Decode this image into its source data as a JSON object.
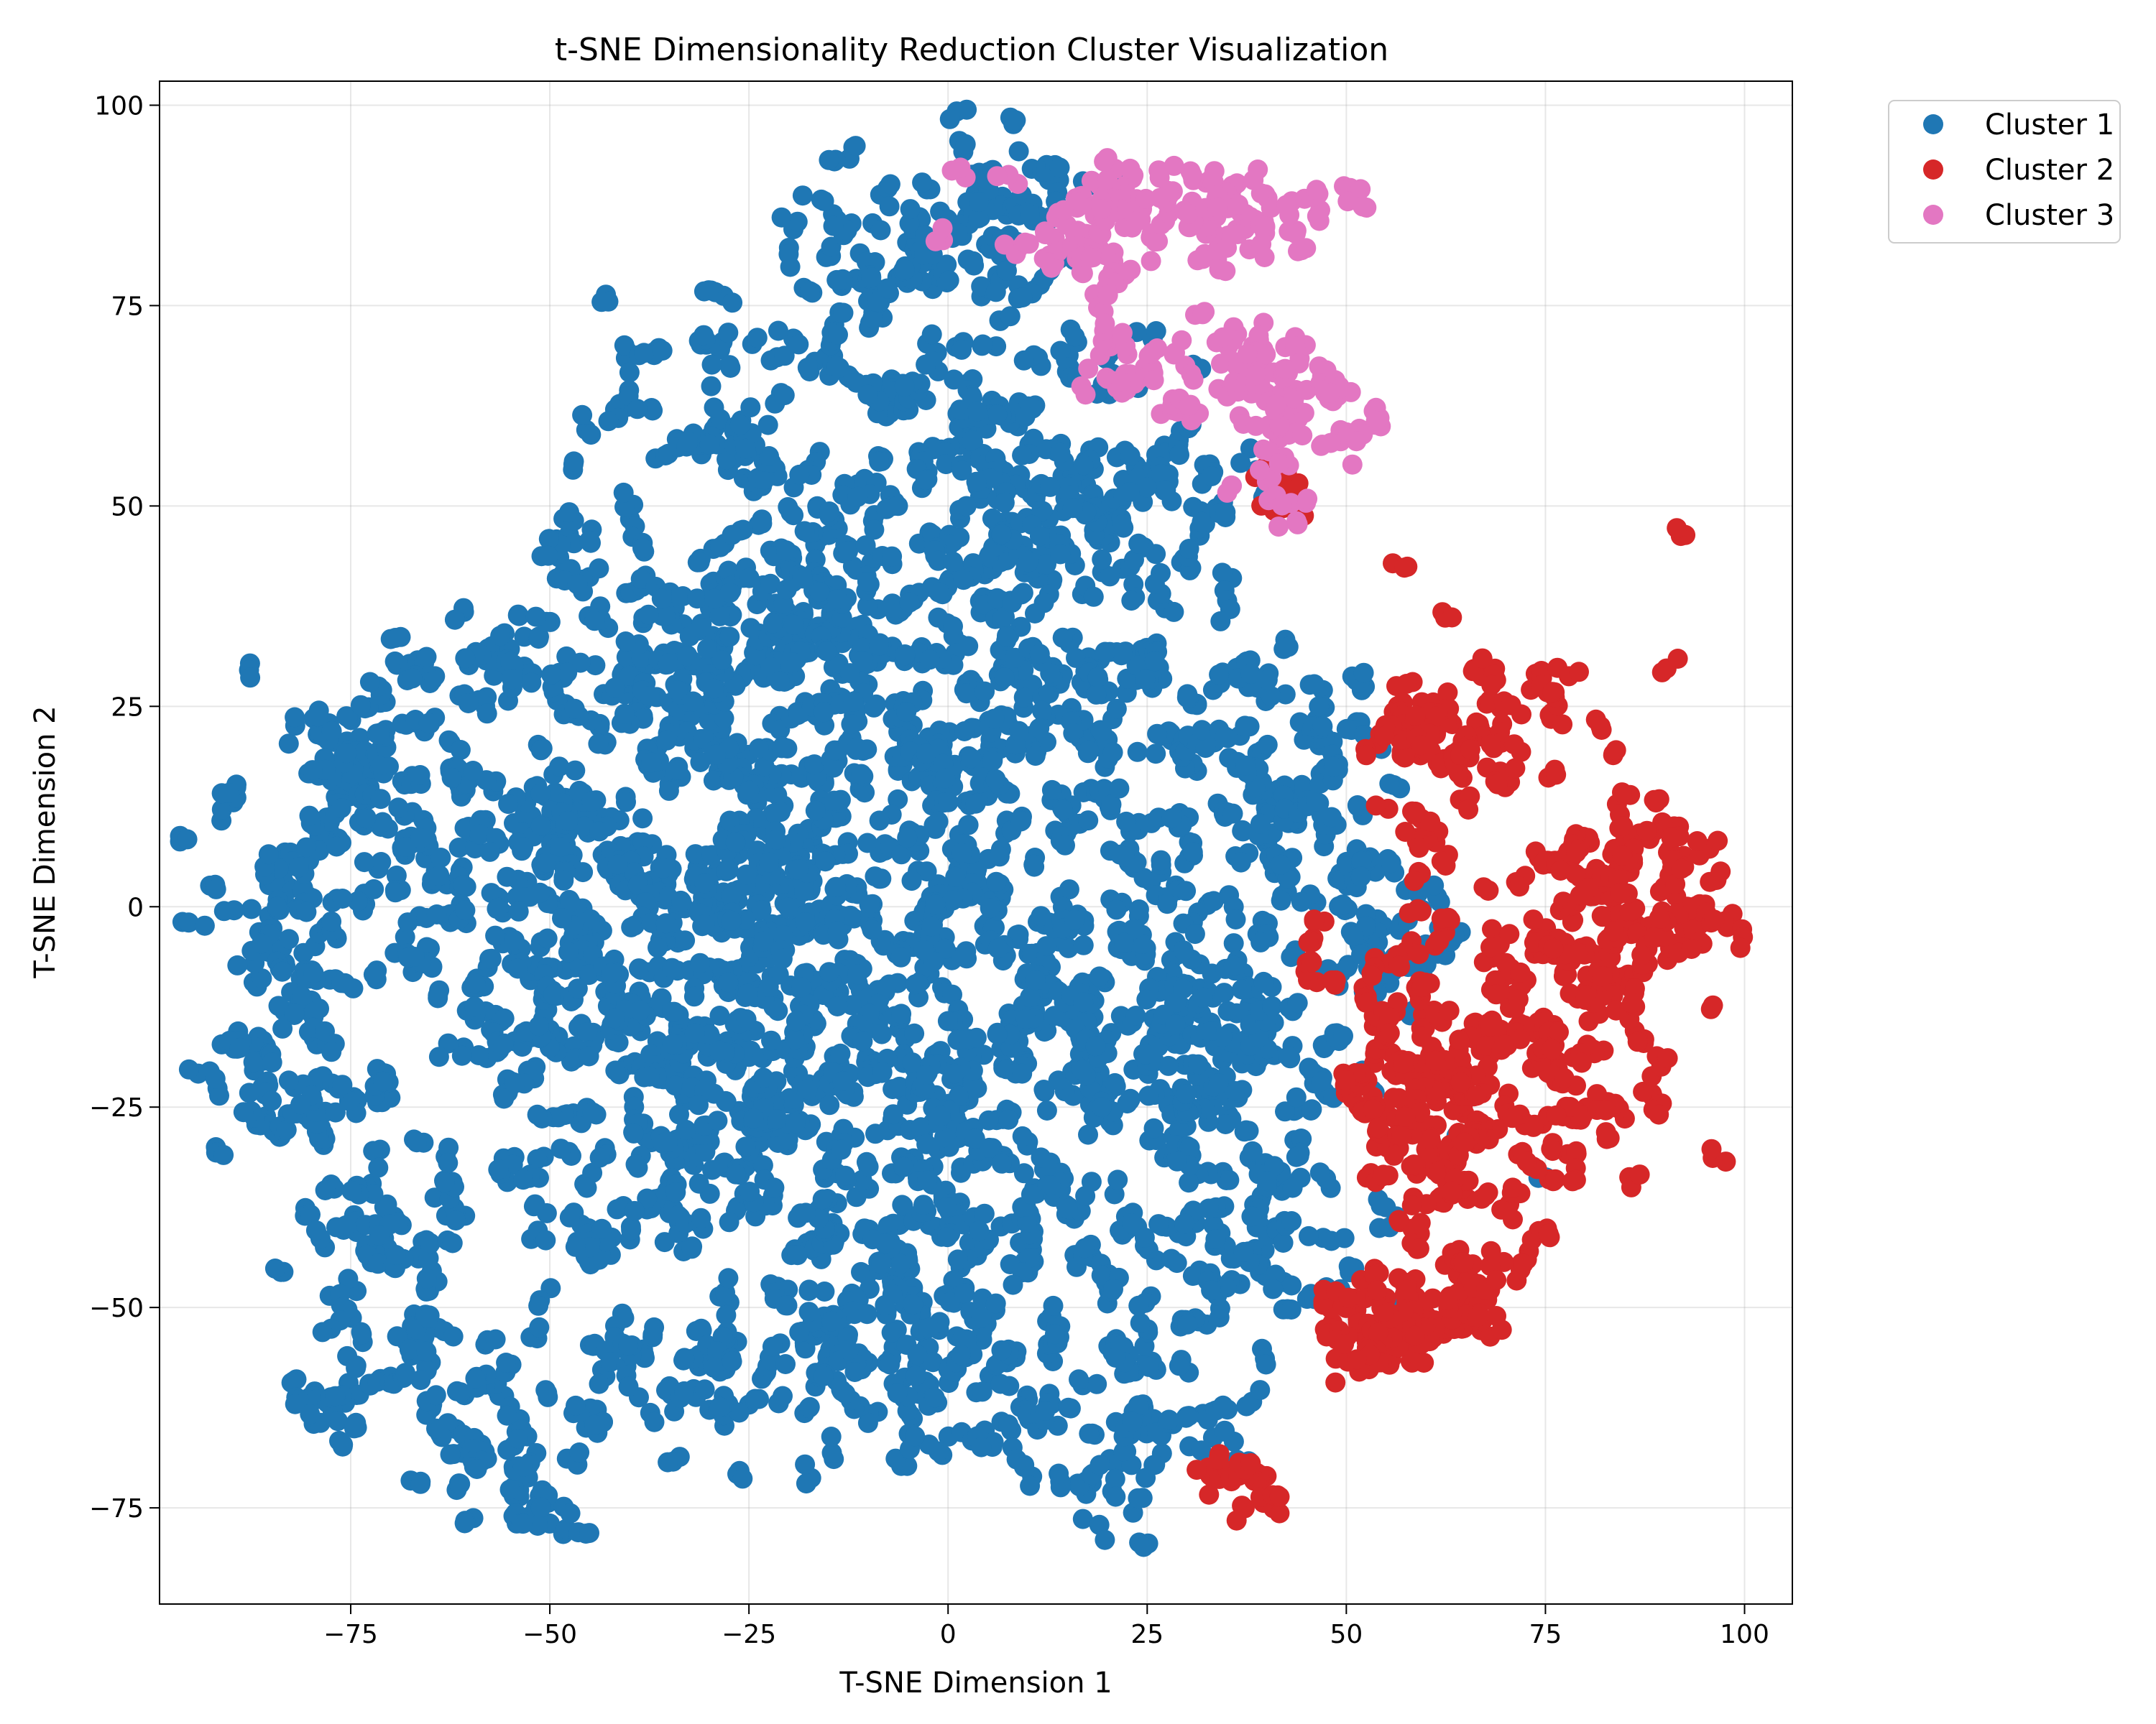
{
  "chart_data": {
    "type": "scatter",
    "title": "t-SNE Dimensionality Reduction Cluster Visualization",
    "xlabel": "T-SNE Dimension 1",
    "ylabel": "T-SNE Dimension 2",
    "xlim": [
      -99,
      106
    ],
    "ylim": [
      -87,
      103
    ],
    "x_ticks": [
      -75,
      -50,
      -25,
      0,
      25,
      50,
      75,
      100
    ],
    "y_ticks": [
      -75,
      -50,
      -25,
      0,
      25,
      50,
      75,
      100
    ],
    "x_tick_labels": [
      "−75",
      "−50",
      "−25",
      "0",
      "25",
      "50",
      "75",
      "100"
    ],
    "y_tick_labels": [
      "−75",
      "−50",
      "−25",
      "0",
      "25",
      "50",
      "75",
      "100"
    ],
    "grid": true,
    "legend_position": "outside top-right",
    "series": [
      {
        "name": "Cluster 1",
        "color": "#1f77b4",
        "regions": [
          [
            -62,
            15,
            14,
            10,
            55
          ],
          [
            -46,
            38,
            7,
            7,
            22
          ],
          [
            -30,
            62,
            10,
            8,
            40
          ],
          [
            -32,
            30,
            10,
            8,
            40
          ],
          [
            -25,
            22,
            12,
            12,
            75
          ],
          [
            -18,
            35,
            8,
            8,
            35
          ],
          [
            -5,
            82,
            8,
            6,
            35
          ],
          [
            5,
            85,
            8,
            5,
            35
          ],
          [
            -5,
            60,
            10,
            8,
            40
          ],
          [
            5,
            45,
            10,
            12,
            60
          ],
          [
            15,
            55,
            8,
            8,
            40
          ],
          [
            0,
            25,
            14,
            12,
            80
          ],
          [
            15,
            20,
            10,
            10,
            45
          ],
          [
            -45,
            10,
            14,
            10,
            60
          ],
          [
            -25,
            0,
            12,
            8,
            55
          ],
          [
            -12,
            5,
            8,
            8,
            35
          ],
          [
            -60,
            -8,
            12,
            10,
            55
          ],
          [
            -82,
            0,
            6,
            6,
            30
          ],
          [
            -82,
            -20,
            6,
            10,
            45
          ],
          [
            -40,
            -20,
            12,
            10,
            60
          ],
          [
            -25,
            -15,
            8,
            12,
            50
          ],
          [
            -10,
            -20,
            10,
            14,
            65
          ],
          [
            5,
            -20,
            10,
            10,
            50
          ],
          [
            15,
            -10,
            12,
            10,
            55
          ],
          [
            30,
            -15,
            8,
            12,
            50
          ],
          [
            40,
            -20,
            8,
            14,
            55
          ],
          [
            35,
            15,
            8,
            10,
            40
          ],
          [
            45,
            20,
            5,
            6,
            25
          ],
          [
            55,
            -5,
            4,
            3,
            15
          ],
          [
            -65,
            -42,
            10,
            6,
            40
          ],
          [
            -68,
            -60,
            8,
            4,
            35
          ],
          [
            -35,
            -60,
            10,
            5,
            40
          ],
          [
            -15,
            -45,
            8,
            10,
            45
          ],
          [
            5,
            -45,
            8,
            14,
            55
          ],
          [
            -5,
            -60,
            8,
            6,
            30
          ],
          [
            22,
            -65,
            8,
            7,
            40
          ],
          [
            32,
            -45,
            12,
            6,
            45
          ],
          [
            -52,
            -73,
            5,
            4,
            20
          ],
          [
            -35,
            -35,
            8,
            6,
            35
          ],
          [
            -75,
            15,
            4,
            5,
            15
          ],
          [
            -68,
            27,
            3,
            3,
            12
          ],
          [
            25,
            50,
            8,
            6,
            30
          ],
          [
            48,
            5,
            3,
            4,
            12
          ],
          [
            60,
            -5,
            3,
            2,
            8
          ]
        ]
      },
      {
        "name": "Cluster 2",
        "color": "#d62728",
        "regions": [
          [
            65,
            20,
            5,
            7,
            45
          ],
          [
            60,
            22,
            3,
            3,
            15
          ],
          [
            80,
            -5,
            7,
            12,
            80
          ],
          [
            70,
            -20,
            8,
            10,
            70
          ],
          [
            92,
            0,
            4,
            4,
            25
          ],
          [
            57,
            -15,
            5,
            6,
            30
          ],
          [
            62,
            -32,
            4,
            5,
            30
          ],
          [
            60,
            -52,
            5,
            4,
            45
          ],
          [
            52,
            -52,
            3,
            3,
            15
          ],
          [
            38,
            -72,
            2,
            2,
            15
          ],
          [
            44,
            52,
            2,
            1,
            6
          ],
          [
            46,
            -5,
            1,
            2,
            5
          ]
        ]
      },
      {
        "name": "Cluster 3",
        "color": "#e377c2",
        "regions": [
          [
            27,
            87,
            10,
            3,
            65
          ],
          [
            18,
            80,
            2,
            3,
            12
          ],
          [
            42,
            62,
            6,
            5,
            40
          ],
          [
            23,
            66,
            4,
            2,
            15
          ],
          [
            37,
            68,
            2,
            3,
            10
          ]
        ]
      }
    ],
    "annotations": []
  }
}
